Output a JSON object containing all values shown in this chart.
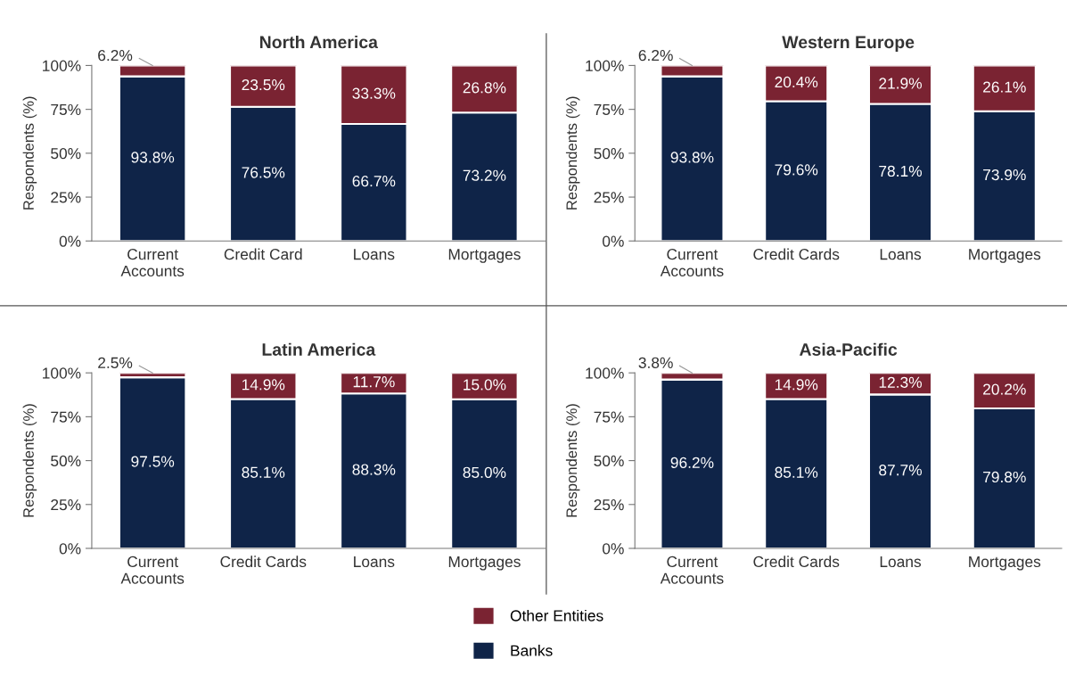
{
  "chart_data": [
    {
      "type": "bar",
      "stacked": true,
      "title": "North America",
      "ylabel": "Respondents (%)",
      "categories": [
        "Current\nAccounts",
        "Credit Card",
        "Loans",
        "Mortgages"
      ],
      "ylim": [
        0,
        100
      ],
      "yticks": [
        {
          "value": 0,
          "label": "0%"
        },
        {
          "value": 25,
          "label": "25%"
        },
        {
          "value": 50,
          "label": "50%"
        },
        {
          "value": 75,
          "label": "75%"
        },
        {
          "value": 100,
          "label": "100%"
        }
      ],
      "grid": false,
      "legend": "bottom",
      "series": [
        {
          "name": "Banks",
          "color": "#0f2448",
          "values": [
            93.8,
            76.5,
            66.7,
            73.2
          ],
          "value_labels": [
            "93.8%",
            "76.5%",
            "66.7%",
            "73.2%"
          ]
        },
        {
          "name": "Other Entities",
          "color": "#7a2332",
          "values": [
            6.2,
            23.5,
            33.3,
            26.8
          ],
          "value_labels": [
            "6.2%",
            "23.5%",
            "33.3%",
            "26.8%"
          ]
        }
      ]
    },
    {
      "type": "bar",
      "stacked": true,
      "title": "Western Europe",
      "ylabel": "Respondents (%)",
      "categories": [
        "Current\nAccounts",
        "Credit Cards",
        "Loans",
        "Mortgages"
      ],
      "ylim": [
        0,
        100
      ],
      "yticks": [
        {
          "value": 0,
          "label": "0%"
        },
        {
          "value": 25,
          "label": "25%"
        },
        {
          "value": 50,
          "label": "50%"
        },
        {
          "value": 75,
          "label": "75%"
        },
        {
          "value": 100,
          "label": "100%"
        }
      ],
      "grid": false,
      "series": [
        {
          "color": "#0f2448",
          "values": [
            93.8,
            79.6,
            78.1,
            73.9
          ],
          "value_labels": [
            "93.8%",
            "79.6%",
            "78.1%",
            "73.9%"
          ]
        },
        {
          "color": "#7a2332",
          "values": [
            6.2,
            20.4,
            21.9,
            26.1
          ],
          "value_labels": [
            "6.2%",
            "20.4%",
            "21.9%",
            "26.1%"
          ]
        }
      ]
    },
    {
      "type": "bar",
      "stacked": true,
      "title": "Latin America",
      "ylabel": "Respondents (%)",
      "categories": [
        "Current\nAccounts",
        "Credit Cards",
        "Loans",
        "Mortgages"
      ],
      "ylim": [
        0,
        100
      ],
      "yticks": [
        {
          "value": 0,
          "label": "0%"
        },
        {
          "value": 25,
          "label": "25%"
        },
        {
          "value": 50,
          "label": "50%"
        },
        {
          "value": 75,
          "label": "75%"
        },
        {
          "value": 100,
          "label": "100%"
        }
      ],
      "grid": false,
      "series": [
        {
          "color": "#0f2448",
          "values": [
            97.5,
            85.1,
            88.3,
            85.0
          ],
          "value_labels": [
            "97.5%",
            "85.1%",
            "88.3%",
            "85.0%"
          ]
        },
        {
          "color": "#7a2332",
          "values": [
            2.5,
            14.9,
            11.7,
            15.0
          ],
          "value_labels": [
            "2.5%",
            "14.9%",
            "11.7%",
            "15.0%"
          ]
        }
      ]
    },
    {
      "type": "bar",
      "stacked": true,
      "title": "Asia-Pacific",
      "ylabel": "Respondents (%)",
      "categories": [
        "Current\nAccounts",
        "Credit Cards",
        "Loans",
        "Mortgages"
      ],
      "ylim": [
        0,
        100
      ],
      "yticks": [
        {
          "value": 0,
          "label": "0%"
        },
        {
          "value": 25,
          "label": "25%"
        },
        {
          "value": 50,
          "label": "50%"
        },
        {
          "value": 75,
          "label": "75%"
        },
        {
          "value": 100,
          "label": "100%"
        }
      ],
      "grid": false,
      "series": [
        {
          "color": "#0f2448",
          "values": [
            96.2,
            85.1,
            87.7,
            79.8
          ],
          "value_labels": [
            "96.2%",
            "85.1%",
            "87.7%",
            "79.8%"
          ]
        },
        {
          "color": "#7a2332",
          "values": [
            3.8,
            14.9,
            12.3,
            20.2
          ],
          "value_labels": [
            "3.8%",
            "14.9%",
            "12.3%",
            "20.2%"
          ]
        }
      ]
    }
  ]
}
